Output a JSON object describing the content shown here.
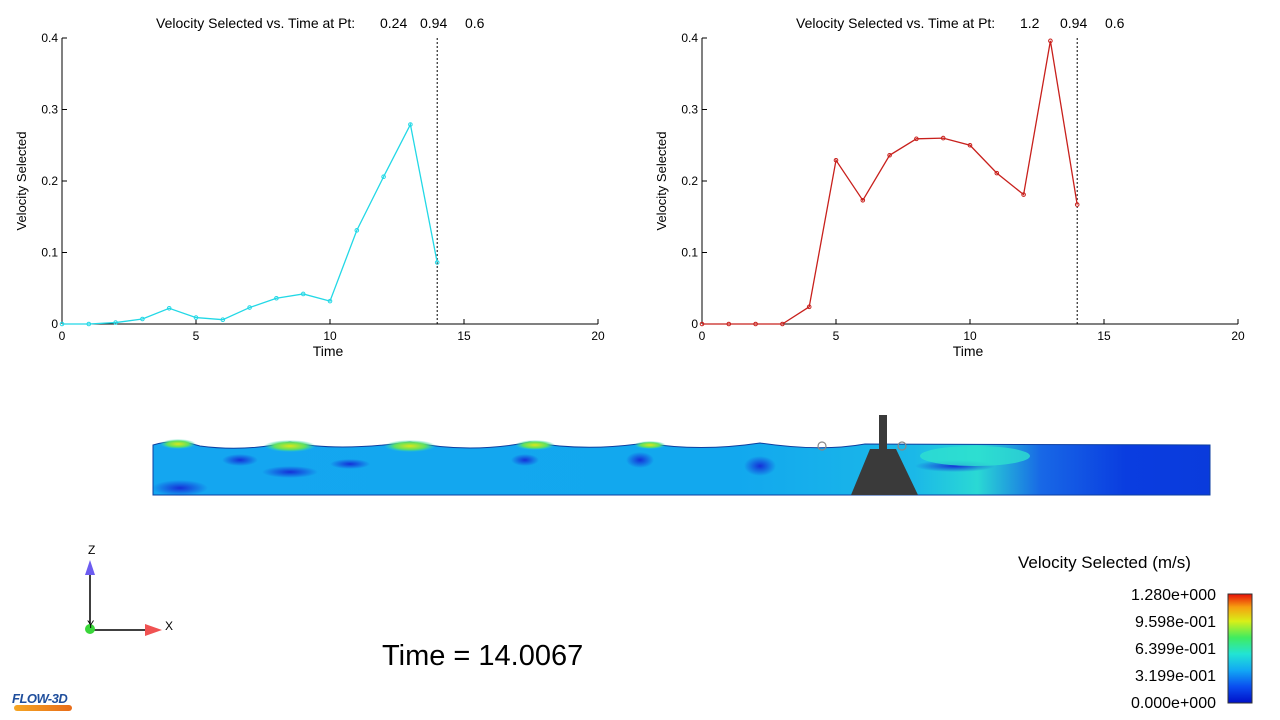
{
  "chart_data": [
    {
      "type": "line",
      "title": "Velocity Selected vs. Time at Pt:",
      "point": [
        "0.24",
        "0.94",
        "0.6"
      ],
      "xlabel": "Time",
      "ylabel": "Velocity Selected",
      "xlim": [
        0,
        20
      ],
      "ylim": [
        0,
        0.4
      ],
      "xticks": [
        0,
        5,
        10,
        15,
        20
      ],
      "yticks": [
        0,
        0.1,
        0.2,
        0.3,
        0.4
      ],
      "ytick_labels": [
        "0",
        "0.1",
        "0.2",
        "0.3",
        "0.4"
      ],
      "current_time": 14,
      "color": "#22d8e6",
      "x": [
        0,
        1,
        2,
        3,
        4,
        5,
        6,
        7,
        8,
        9,
        10,
        11,
        12,
        13,
        14
      ],
      "y": [
        0,
        0,
        0.002,
        0.007,
        0.022,
        0.009,
        0.006,
        0.023,
        0.036,
        0.042,
        0.032,
        0.131,
        0.206,
        0.279,
        0.086
      ]
    },
    {
      "type": "line",
      "title": "Velocity Selected vs. Time at Pt:",
      "point": [
        "1.2",
        "0.94",
        "0.6"
      ],
      "xlabel": "Time",
      "ylabel": "Velocity Selected",
      "xlim": [
        0,
        20
      ],
      "ylim": [
        0,
        0.4
      ],
      "xticks": [
        0,
        5,
        10,
        15,
        20
      ],
      "yticks": [
        0,
        0.1,
        0.2,
        0.3,
        0.4
      ],
      "ytick_labels": [
        "0",
        "0.1",
        "0.2",
        "0.3",
        "0.4"
      ],
      "current_time": 14,
      "color": "#c8201c",
      "x": [
        0,
        1,
        2,
        3,
        4,
        5,
        6,
        7,
        8,
        9,
        10,
        11,
        12,
        13,
        14
      ],
      "y": [
        0,
        0,
        0,
        0,
        0.024,
        0.229,
        0.173,
        0.236,
        0.259,
        0.26,
        0.25,
        0.211,
        0.181,
        0.396,
        0.167
      ]
    }
  ],
  "legend": {
    "title": "Velocity Selected (m/s)",
    "labels": [
      "1.280e+000",
      "9.598e-001",
      "6.399e-001",
      "3.199e-001",
      "0.000e+000"
    ]
  },
  "axes": {
    "z": "Z",
    "y": "Y",
    "x": "X"
  },
  "time_readout": "Time = 14.0067",
  "logo": "FLOW-3D"
}
